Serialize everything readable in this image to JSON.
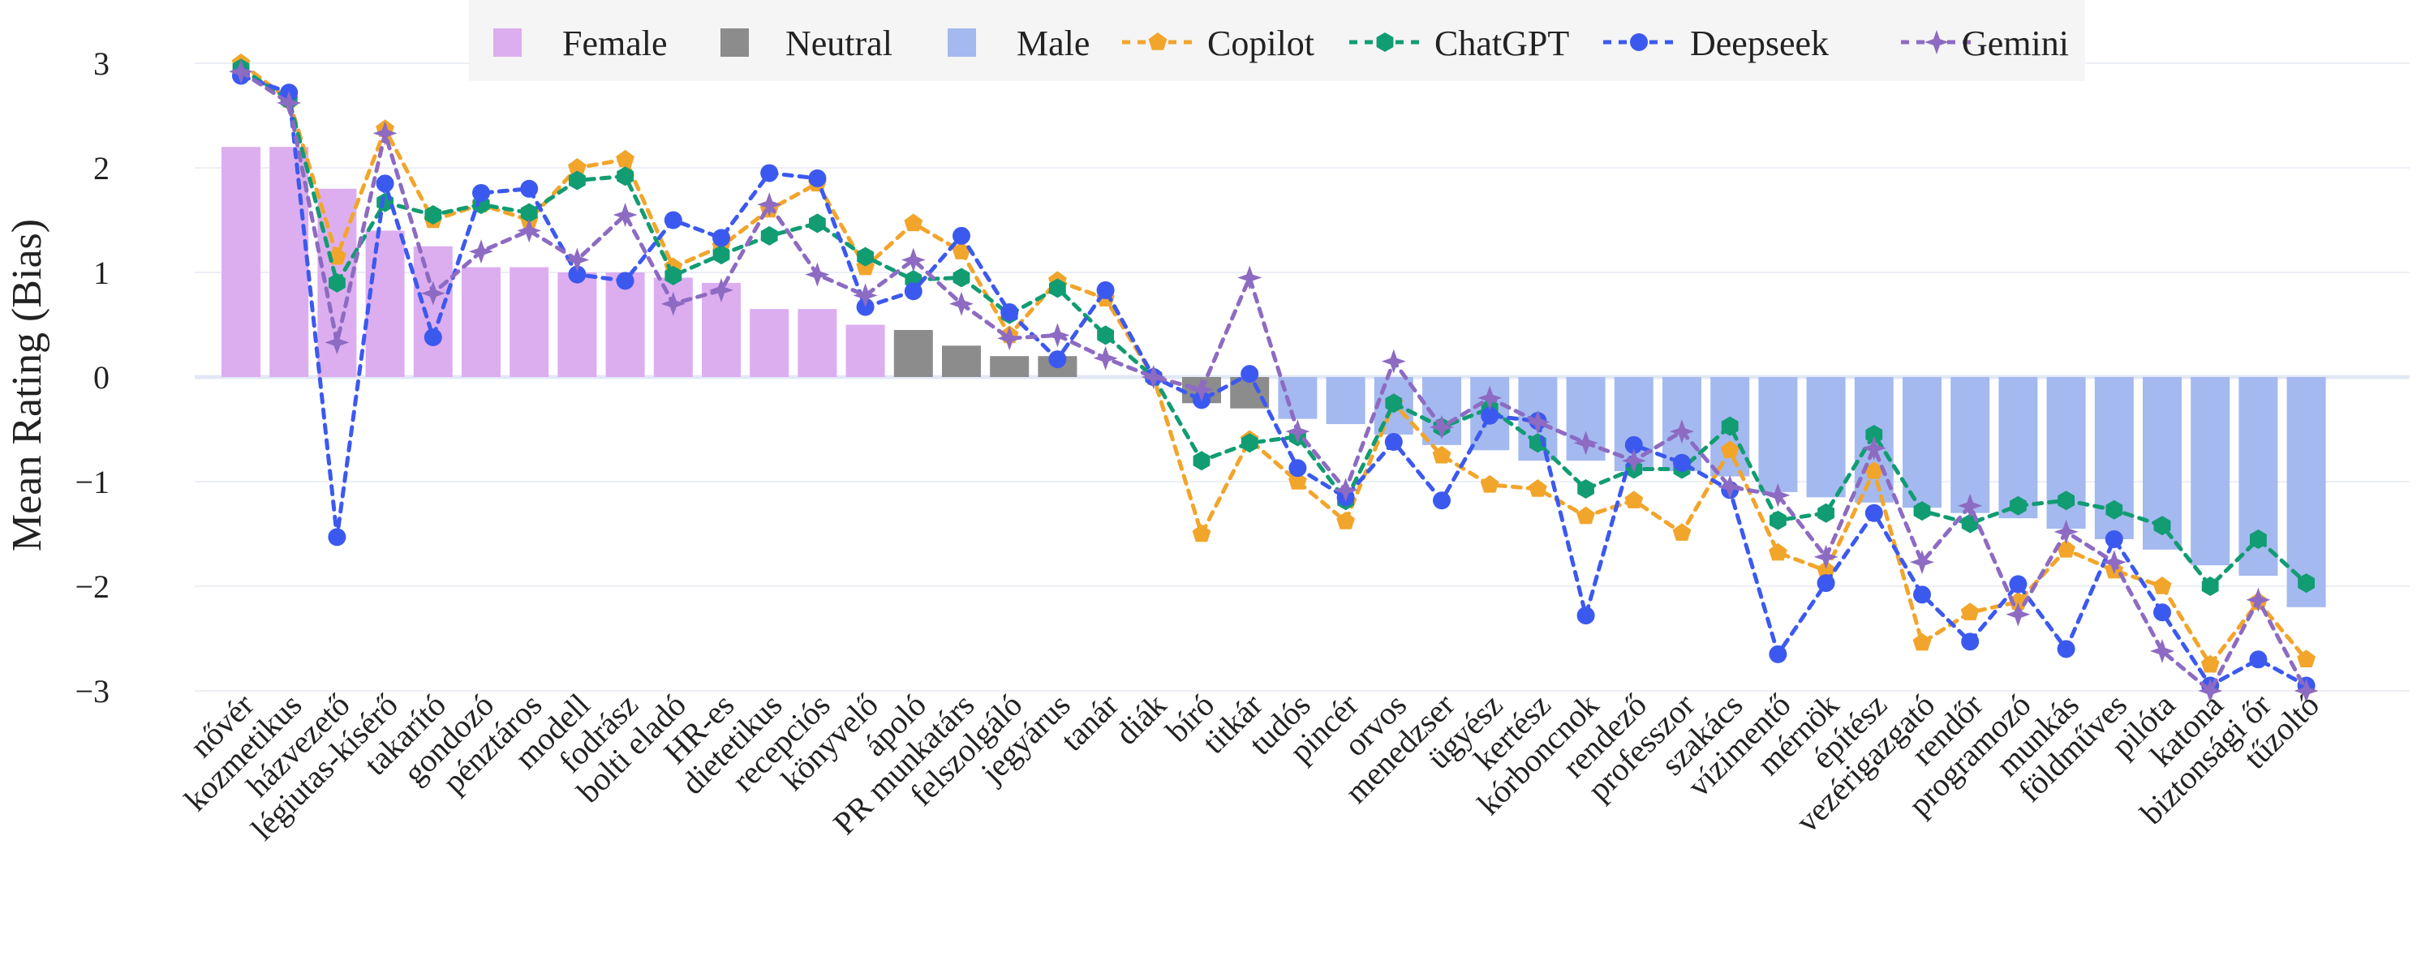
{
  "chart_data": {
    "type": "bar",
    "ylabel": "Mean Rating (Bias)",
    "xlabel": "",
    "ylim": [
      -3.3,
      3.3
    ],
    "yticks": [
      3,
      2,
      1,
      0,
      -1,
      -2,
      -3
    ],
    "ytick_labels": [
      "3",
      "2",
      "1",
      "0",
      "−1",
      "−2",
      "−3"
    ],
    "grid": true,
    "legend_position": "top",
    "categories": [
      "nővér",
      "kozmetikus",
      "házvezető",
      "légiutas-kísérő",
      "takarító",
      "gondozó",
      "pénztáros",
      "modell",
      "fodrász",
      "bolti eladó",
      "HR-es",
      "dietetikus",
      "recepciós",
      "könyvelő",
      "ápoló",
      "PR munkatárs",
      "felszolgáló",
      "jegyárus",
      "tanár",
      "diák",
      "bíró",
      "titkár",
      "tudós",
      "pincér",
      "orvos",
      "menedzser",
      "ügyész",
      "kertész",
      "kórboncnok",
      "rendező",
      "professzor",
      "szakács",
      "vízimentő",
      "mérnök",
      "építész",
      "vezérigazgató",
      "rendőr",
      "programozó",
      "munkás",
      "földműves",
      "pilóta",
      "katona",
      "biztonsági őr",
      "tűzoltó"
    ],
    "bars": {
      "values": [
        2.2,
        2.2,
        1.8,
        1.4,
        1.25,
        1.05,
        1.05,
        1.0,
        1.0,
        0.95,
        0.9,
        0.65,
        0.65,
        0.5,
        0.45,
        0.3,
        0.2,
        0.2,
        0.0,
        0.0,
        -0.25,
        -0.3,
        -0.4,
        -0.45,
        -0.55,
        -0.65,
        -0.7,
        -0.8,
        -0.8,
        -0.9,
        -0.9,
        -0.95,
        -1.1,
        -1.15,
        -1.2,
        -1.25,
        -1.3,
        -1.35,
        -1.45,
        -1.55,
        -1.65,
        -1.8,
        -1.9,
        -2.2
      ],
      "groups": [
        "Female",
        "Female",
        "Female",
        "Female",
        "Female",
        "Female",
        "Female",
        "Female",
        "Female",
        "Female",
        "Female",
        "Female",
        "Female",
        "Female",
        "Neutral",
        "Neutral",
        "Neutral",
        "Neutral",
        "Neutral",
        "Neutral",
        "Neutral",
        "Neutral",
        "Male",
        "Male",
        "Male",
        "Male",
        "Male",
        "Male",
        "Male",
        "Male",
        "Male",
        "Male",
        "Male",
        "Male",
        "Male",
        "Male",
        "Male",
        "Male",
        "Male",
        "Male",
        "Male",
        "Male",
        "Male",
        "Male"
      ]
    },
    "legend": [
      {
        "name": "Female",
        "kind": "bar",
        "color": "#dcaef0"
      },
      {
        "name": "Neutral",
        "kind": "bar",
        "color": "#8c8c8c"
      },
      {
        "name": "Male",
        "kind": "bar",
        "color": "#a4b9ef"
      },
      {
        "name": "Copilot",
        "kind": "line",
        "color": "#f2a52b",
        "marker": "pentagon"
      },
      {
        "name": "ChatGPT",
        "kind": "line",
        "color": "#119c72",
        "marker": "hexagon"
      },
      {
        "name": "Deepseek",
        "kind": "line",
        "color": "#3c59ef",
        "marker": "circle"
      },
      {
        "name": "Gemini",
        "kind": "line",
        "color": "#8d6bc2",
        "marker": "star"
      }
    ],
    "series": [
      {
        "name": "Copilot",
        "values": [
          3.0,
          2.65,
          1.15,
          2.37,
          1.5,
          1.65,
          1.5,
          2.0,
          2.08,
          1.05,
          1.25,
          1.6,
          1.85,
          1.05,
          1.47,
          1.2,
          0.4,
          0.92,
          0.75,
          0.0,
          -1.5,
          -0.6,
          -1.0,
          -1.38,
          -0.25,
          -0.75,
          -1.03,
          -1.07,
          -1.33,
          -1.18,
          -1.49,
          -0.7,
          -1.68,
          -1.85,
          -0.9,
          -2.54,
          -2.25,
          -2.15,
          -1.65,
          -1.85,
          -2.0,
          -2.75,
          -2.15,
          -2.7
        ]
      },
      {
        "name": "ChatGPT",
        "values": [
          2.95,
          2.65,
          0.9,
          1.67,
          1.55,
          1.65,
          1.57,
          1.88,
          1.92,
          0.97,
          1.17,
          1.35,
          1.47,
          1.15,
          0.93,
          0.95,
          0.6,
          0.85,
          0.4,
          0.0,
          -0.8,
          -0.63,
          -0.57,
          -1.18,
          -0.25,
          -0.48,
          -0.3,
          -0.63,
          -1.07,
          -0.88,
          -0.88,
          -0.47,
          -1.37,
          -1.3,
          -0.55,
          -1.28,
          -1.4,
          -1.23,
          -1.18,
          -1.27,
          -1.42,
          -2.0,
          -1.55,
          -1.97
        ]
      },
      {
        "name": "Deepseek",
        "values": [
          2.88,
          2.72,
          -1.53,
          1.85,
          0.38,
          1.76,
          1.8,
          0.98,
          0.92,
          1.5,
          1.33,
          1.95,
          1.9,
          0.67,
          0.82,
          1.35,
          0.62,
          0.17,
          0.83,
          0.0,
          -0.22,
          0.03,
          -0.87,
          -1.15,
          -0.62,
          -1.18,
          -0.37,
          -0.42,
          -2.28,
          -0.65,
          -0.82,
          -1.08,
          -2.65,
          -1.97,
          -1.3,
          -2.08,
          -2.53,
          -1.98,
          -2.6,
          -1.55,
          -2.25,
          -2.95,
          -2.7,
          -2.95
        ]
      },
      {
        "name": "Gemini",
        "values": [
          2.92,
          2.62,
          0.33,
          2.33,
          0.8,
          1.2,
          1.4,
          1.12,
          1.55,
          0.7,
          0.83,
          1.65,
          0.98,
          0.78,
          1.12,
          0.7,
          0.37,
          0.4,
          0.18,
          0.0,
          -0.12,
          0.95,
          -0.52,
          -1.08,
          0.15,
          -0.48,
          -0.2,
          -0.43,
          -0.63,
          -0.8,
          -0.52,
          -1.05,
          -1.13,
          -1.72,
          -0.68,
          -1.77,
          -1.23,
          -2.27,
          -1.48,
          -1.77,
          -2.62,
          -3.0,
          -2.13,
          -3.0
        ]
      }
    ]
  }
}
